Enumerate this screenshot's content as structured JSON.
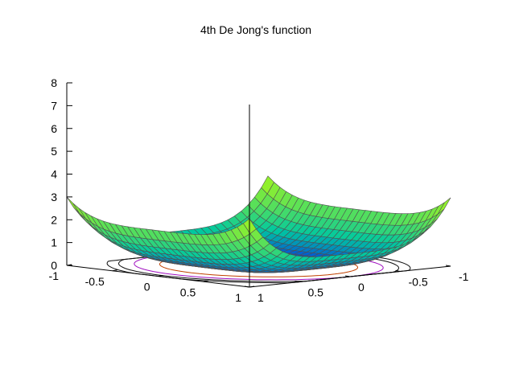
{
  "chart_data": {
    "type": "surface3d",
    "title": "4th De Jong's function",
    "function": "x^4 + 2*y^4",
    "x_range": [
      -1,
      1
    ],
    "y_range": [
      -1,
      1
    ],
    "z_range": [
      0,
      8
    ],
    "z_ticks": [
      "0",
      "1",
      "2",
      "3",
      "4",
      "5",
      "6",
      "7",
      "8"
    ],
    "x_ticks": [
      "1",
      "0.5",
      "0",
      "-0.5",
      "-1"
    ],
    "y_ticks": [
      "1",
      "0.5",
      "0",
      "-0.5",
      "-1"
    ],
    "x_tick_values": [
      1,
      0.5,
      0,
      -0.5,
      -1
    ],
    "y_tick_values": [
      1,
      0.5,
      0,
      -0.5,
      -1
    ],
    "z_tick_values": [
      0,
      1,
      2,
      3,
      4,
      5,
      6,
      7,
      8
    ],
    "grid_samples": 30,
    "base_contour_levels": [
      0.4,
      1.0,
      1.6,
      2.2
    ],
    "contour_colors": [
      "#c04000",
      "#a010c0",
      "#101010",
      "#101010"
    ],
    "colormap": [
      "#0000ff",
      "#00c8a0",
      "#c8ff00",
      "#ff9900"
    ],
    "edge_color": "#505050"
  }
}
